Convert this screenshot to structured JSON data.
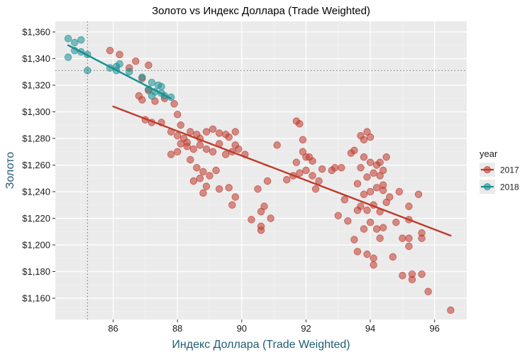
{
  "chart_data": {
    "type": "scatter",
    "title": "Золото vs Индекс Доллара (Trade Weighted)",
    "xlabel": "Индекс Доллара (Trade Weighted)",
    "ylabel": "Золото",
    "xlim": [
      84.2,
      97.0
    ],
    "ylim": [
      1144,
      1368
    ],
    "x_ticks": [
      86,
      88,
      90,
      92,
      94,
      96
    ],
    "y_ticks": [
      1160,
      1180,
      1200,
      1220,
      1240,
      1260,
      1280,
      1300,
      1320,
      1340,
      1360
    ],
    "y_tick_labels": [
      "$1,160",
      "$1,180",
      "$1,200",
      "$1,220",
      "$1,240",
      "$1,260",
      "$1,280",
      "$1,300",
      "$1,320",
      "$1,340",
      "$1,360"
    ],
    "grid": true,
    "legend": {
      "title": "year",
      "placement": "right"
    },
    "reference_lines": {
      "vertical_x": 85.2,
      "horizontal_y": 1331
    },
    "series": [
      {
        "name": "2017",
        "color": "#c0392b",
        "trend": [
          [
            86.0,
            1304
          ],
          [
            96.5,
            1207
          ]
        ],
        "points": [
          [
            85.9,
            1346
          ],
          [
            86.2,
            1343
          ],
          [
            86.5,
            1333
          ],
          [
            86.7,
            1338
          ],
          [
            87.1,
            1335
          ],
          [
            86.9,
            1325
          ],
          [
            86.8,
            1312
          ],
          [
            86.9,
            1309
          ],
          [
            87.1,
            1316
          ],
          [
            87.3,
            1308
          ],
          [
            87.6,
            1310
          ],
          [
            87.9,
            1306
          ],
          [
            87.0,
            1294
          ],
          [
            87.2,
            1292
          ],
          [
            87.5,
            1292
          ],
          [
            87.8,
            1285
          ],
          [
            88.0,
            1298
          ],
          [
            88.1,
            1290
          ],
          [
            88.0,
            1282
          ],
          [
            88.2,
            1280
          ],
          [
            88.3,
            1277
          ],
          [
            88.4,
            1285
          ],
          [
            88.6,
            1283
          ],
          [
            88.7,
            1280
          ],
          [
            88.9,
            1285
          ],
          [
            89.1,
            1287
          ],
          [
            89.3,
            1284
          ],
          [
            89.5,
            1283
          ],
          [
            89.6,
            1281
          ],
          [
            89.8,
            1285
          ],
          [
            88.1,
            1276
          ],
          [
            88.3,
            1274
          ],
          [
            88.5,
            1272
          ],
          [
            88.7,
            1275
          ],
          [
            88.9,
            1272
          ],
          [
            89.1,
            1270
          ],
          [
            89.3,
            1276
          ],
          [
            89.5,
            1268
          ],
          [
            89.7,
            1270
          ],
          [
            89.9,
            1272
          ],
          [
            90.1,
            1268
          ],
          [
            89.8,
            1275
          ],
          [
            87.8,
            1268
          ],
          [
            88.0,
            1270
          ],
          [
            88.4,
            1264
          ],
          [
            88.6,
            1258
          ],
          [
            88.8,
            1255
          ],
          [
            89.0,
            1252
          ],
          [
            89.2,
            1256
          ],
          [
            88.5,
            1248
          ],
          [
            88.7,
            1250
          ],
          [
            88.9,
            1244
          ],
          [
            89.3,
            1242
          ],
          [
            89.6,
            1243
          ],
          [
            89.8,
            1236
          ],
          [
            89.7,
            1230
          ],
          [
            88.8,
            1239
          ],
          [
            90.3,
            1219
          ],
          [
            90.5,
            1242
          ],
          [
            90.8,
            1248
          ],
          [
            90.7,
            1229
          ],
          [
            90.6,
            1225
          ],
          [
            90.6,
            1214
          ],
          [
            90.6,
            1211
          ],
          [
            90.9,
            1220
          ],
          [
            91.1,
            1275
          ],
          [
            91.4,
            1249
          ],
          [
            91.6,
            1252
          ],
          [
            91.7,
            1293
          ],
          [
            91.8,
            1291
          ],
          [
            91.9,
            1279
          ],
          [
            91.9,
            1270
          ],
          [
            91.7,
            1262
          ],
          [
            91.8,
            1254
          ],
          [
            92.0,
            1266
          ],
          [
            92.1,
            1266
          ],
          [
            92.2,
            1263
          ],
          [
            92.0,
            1256
          ],
          [
            92.2,
            1252
          ],
          [
            92.4,
            1248
          ],
          [
            92.3,
            1242
          ],
          [
            92.5,
            1257
          ],
          [
            92.8,
            1256
          ],
          [
            92.9,
            1258
          ],
          [
            93.1,
            1258
          ],
          [
            93.2,
            1234
          ],
          [
            93.0,
            1222
          ],
          [
            93.3,
            1218
          ],
          [
            93.5,
            1204
          ],
          [
            93.6,
            1195
          ],
          [
            93.4,
            1269
          ],
          [
            93.5,
            1271
          ],
          [
            93.7,
            1282
          ],
          [
            93.8,
            1279
          ],
          [
            93.9,
            1285
          ],
          [
            94.0,
            1281
          ],
          [
            93.8,
            1266
          ],
          [
            94.0,
            1262
          ],
          [
            94.2,
            1260
          ],
          [
            94.3,
            1262
          ],
          [
            94.4,
            1256
          ],
          [
            94.5,
            1266
          ],
          [
            93.7,
            1258
          ],
          [
            93.9,
            1251
          ],
          [
            94.1,
            1254
          ],
          [
            94.3,
            1252
          ],
          [
            94.4,
            1245
          ],
          [
            93.6,
            1246
          ],
          [
            93.8,
            1238
          ],
          [
            94.0,
            1240
          ],
          [
            94.2,
            1243
          ],
          [
            94.4,
            1241
          ],
          [
            94.6,
            1236
          ],
          [
            93.7,
            1229
          ],
          [
            93.9,
            1226
          ],
          [
            94.1,
            1230
          ],
          [
            94.3,
            1225
          ],
          [
            94.5,
            1232
          ],
          [
            93.6,
            1226
          ],
          [
            94.0,
            1217
          ],
          [
            94.2,
            1212
          ],
          [
            94.4,
            1213
          ],
          [
            93.8,
            1212
          ],
          [
            93.9,
            1193
          ],
          [
            94.1,
            1190
          ],
          [
            94.1,
            1185
          ],
          [
            94.3,
            1205
          ],
          [
            94.7,
            1191
          ],
          [
            95.0,
            1177
          ],
          [
            94.8,
            1217
          ],
          [
            94.9,
            1240
          ],
          [
            95.2,
            1229
          ],
          [
            95.2,
            1219
          ],
          [
            95.2,
            1205
          ],
          [
            95.0,
            1205
          ],
          [
            95.2,
            1199
          ],
          [
            95.3,
            1178
          ],
          [
            95.3,
            1174
          ],
          [
            95.6,
            1178
          ],
          [
            95.5,
            1238
          ],
          [
            95.6,
            1209
          ],
          [
            95.6,
            1205
          ],
          [
            95.8,
            1165
          ],
          [
            96.5,
            1151
          ]
        ]
      },
      {
        "name": "2018",
        "color": "#178f91",
        "trend": [
          [
            84.6,
            1350
          ],
          [
            87.8,
            1310
          ]
        ],
        "points": [
          [
            84.6,
            1355
          ],
          [
            84.8,
            1352
          ],
          [
            85.0,
            1354
          ],
          [
            84.6,
            1341
          ],
          [
            84.8,
            1346
          ],
          [
            85.0,
            1345
          ],
          [
            85.2,
            1343
          ],
          [
            85.2,
            1331
          ],
          [
            85.9,
            1333
          ],
          [
            86.1,
            1334
          ],
          [
            86.2,
            1336
          ],
          [
            86.1,
            1331
          ],
          [
            86.5,
            1330
          ],
          [
            86.9,
            1326
          ],
          [
            87.2,
            1322
          ],
          [
            87.1,
            1317
          ],
          [
            87.3,
            1315
          ],
          [
            87.5,
            1319
          ],
          [
            87.4,
            1320
          ],
          [
            87.6,
            1312
          ],
          [
            87.8,
            1311
          ],
          [
            87.5,
            1314
          ],
          [
            87.2,
            1312
          ]
        ]
      }
    ]
  }
}
